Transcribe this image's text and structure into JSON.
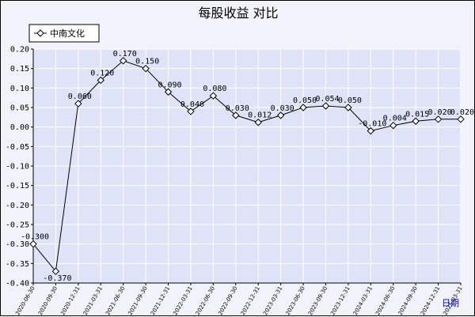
{
  "chart_data": {
    "type": "line",
    "title": "每股收益  对比",
    "xlabel": "",
    "ylabel": "",
    "corner_label": "日期",
    "x": [
      "2020-06-30",
      "2020-09-30",
      "2020-12-31",
      "2021-03-31",
      "2021-06-30",
      "2021-09-30",
      "2021-12-31",
      "2022-03-31",
      "2022-06-30",
      "2022-09-30",
      "2022-12-31",
      "2023-03-31",
      "2023-06-30",
      "2023-09-30",
      "2023-12-31",
      "2024-03-31",
      "2024-06-30",
      "2024-09-30",
      "2024-12-31",
      "2025-03-31"
    ],
    "ylim": [
      -0.4,
      0.2
    ],
    "yticks": [
      0.2,
      0.15,
      0.1,
      0.05,
      0.0,
      -0.05,
      -0.1,
      -0.15,
      -0.2,
      -0.25,
      -0.3,
      -0.35,
      -0.4
    ],
    "ytick_labels": [
      "0.20",
      "0.15",
      "0.10",
      "0.05",
      "0.00",
      "-0.05",
      "-0.10",
      "-0.15",
      "-0.20",
      "-0.25",
      "-0.30",
      "-0.35",
      "-0.40"
    ],
    "grid": true,
    "legend_position": "top-left",
    "series": [
      {
        "name": "中南文化",
        "color": "#000000",
        "marker_fill": "#ffffff",
        "values": [
          -0.3,
          -0.37,
          0.06,
          0.12,
          0.17,
          0.15,
          0.09,
          0.04,
          0.08,
          0.03,
          0.012,
          0.03,
          0.05,
          0.054,
          0.05,
          -0.01,
          0.004,
          0.015,
          0.02,
          0.02
        ],
        "labels": [
          "-0.300",
          "-0.370",
          "0.060",
          "0.120",
          "0.170",
          "0.150",
          "0.090",
          "0.040",
          "0.080",
          "0.030",
          "0.012",
          "0.030",
          "0.050",
          "0.054",
          "0.050",
          "-0.010",
          "0.004",
          "0.015",
          "0.020",
          "0.020"
        ]
      }
    ],
    "colors": {
      "plot_background": "#dfe3f8",
      "frame_background": "#f2f2fb",
      "grid": "#ffffff",
      "axis": "#000000"
    }
  }
}
